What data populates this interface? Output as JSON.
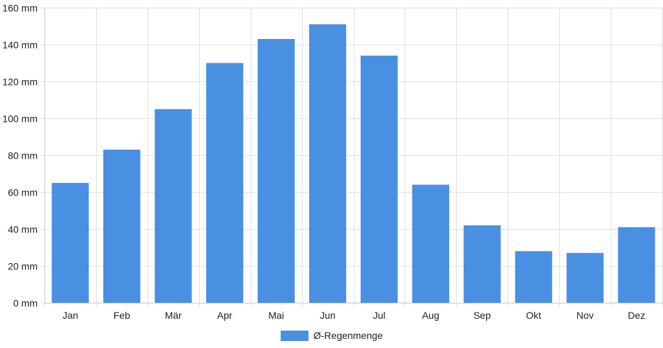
{
  "chart_data": {
    "type": "bar",
    "categories": [
      "Jan",
      "Feb",
      "Mär",
      "Apr",
      "Mai",
      "Jun",
      "Jul",
      "Aug",
      "Sep",
      "Okt",
      "Nov",
      "Dez"
    ],
    "series": [
      {
        "name": "Ø-Regenmenge",
        "values": [
          65,
          83,
          105,
          130,
          143,
          151,
          134,
          64,
          42,
          28,
          27,
          41
        ],
        "color": "#4a90e2"
      }
    ],
    "y_unit_suffix": " mm",
    "ylim": [
      0,
      160
    ],
    "y_ticks": [
      0,
      20,
      40,
      60,
      80,
      100,
      120,
      140,
      160
    ],
    "grid": true,
    "legend_position": "bottom"
  }
}
